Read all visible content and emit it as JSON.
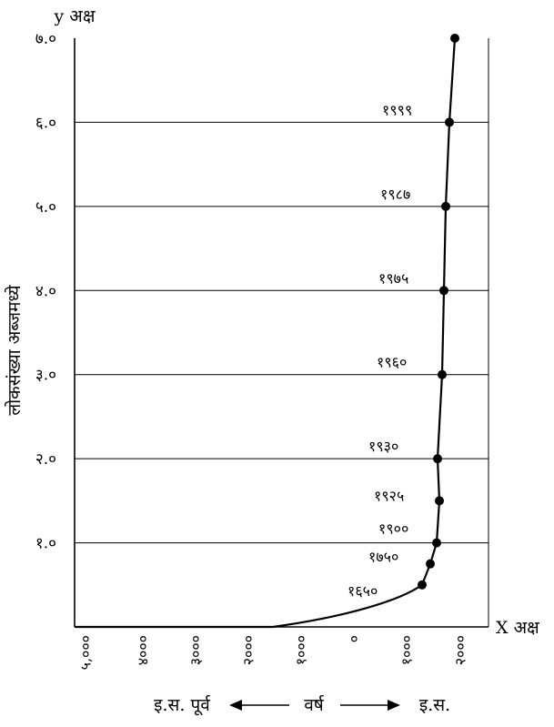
{
  "chart_data": {
    "type": "line",
    "x_axis_name": "X अक्ष",
    "y_axis_name": "y अक्ष",
    "ylabel": "लोकसंख्या अब्जमध्ये",
    "xlabel": "वर्ष",
    "era_left": "इ.स. पूर्व",
    "era_right": "इ.स.",
    "ylim": [
      0,
      7
    ],
    "y_ticks": [
      {
        "value": 1,
        "label": "१.०"
      },
      {
        "value": 2,
        "label": "२.०"
      },
      {
        "value": 3,
        "label": "३.०"
      },
      {
        "value": 4,
        "label": "४.०"
      },
      {
        "value": 5,
        "label": "५.०"
      },
      {
        "value": 6,
        "label": "६.०"
      },
      {
        "value": 7,
        "label": "७.०"
      }
    ],
    "x_ticks": [
      "५,०००",
      "४०००",
      "३०००",
      "२०००",
      "१०००",
      "०",
      "१०००",
      "२०००"
    ],
    "series": [
      {
        "points": [
          {
            "label": "१६५०",
            "y": 0.5
          },
          {
            "label": "१७५०",
            "y": 0.75
          },
          {
            "label": "१९००",
            "y": 1.0
          },
          {
            "label": "१९२५",
            "y": 1.5
          },
          {
            "label": "१९३०",
            "y": 2.0
          },
          {
            "label": "१९६०",
            "y": 3.0
          },
          {
            "label": "१९७५",
            "y": 4.0
          },
          {
            "label": "१९८७",
            "y": 5.0
          },
          {
            "label": "१९९९",
            "y": 6.0
          },
          {
            "label": "",
            "y": 7.0
          }
        ]
      }
    ]
  }
}
